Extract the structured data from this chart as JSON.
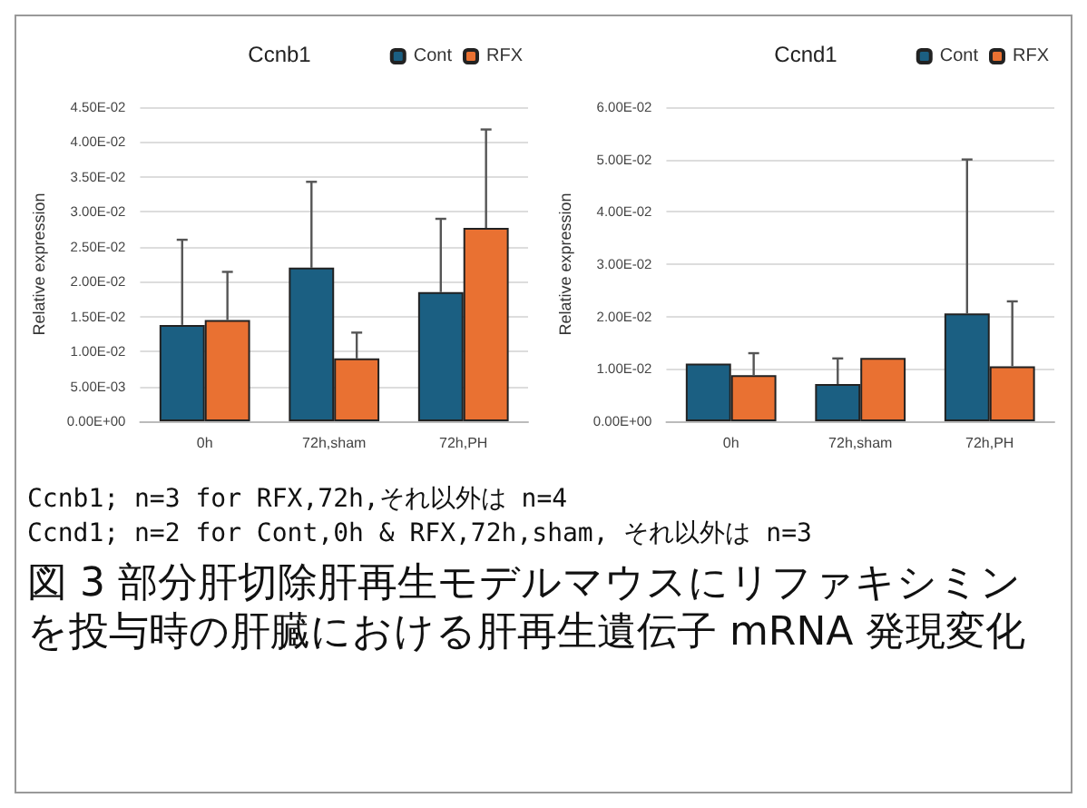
{
  "chart_data": [
    {
      "type": "bar",
      "title": "Ccnb1",
      "ylabel": "Relative expression",
      "categories": [
        "0h",
        "72h,sham",
        "72h,PH"
      ],
      "series": [
        {
          "name": "Cont",
          "color": "#1b5f82",
          "values": [
            0.0138,
            0.022,
            0.0185
          ],
          "errors": [
            [
              0.0138,
              0.026
            ],
            [
              0.022,
              0.0343
            ],
            [
              0.0185,
              0.029
            ]
          ]
        },
        {
          "name": "RFX",
          "color": "#e97132",
          "values": [
            0.0145,
            0.009,
            0.0277
          ],
          "errors": [
            [
              0.0145,
              0.0214
            ],
            [
              0.009,
              0.0127
            ],
            [
              0.0277,
              0.0418
            ]
          ]
        }
      ],
      "ylim": [
        0,
        0.045
      ],
      "yticks": [
        {
          "value": 0,
          "label": "0.00E+00"
        },
        {
          "value": 0.005,
          "label": "5.00E-03"
        },
        {
          "value": 0.01,
          "label": "1.00E-02"
        },
        {
          "value": 0.015,
          "label": "1.50E-02"
        },
        {
          "value": 0.02,
          "label": "2.00E-02"
        },
        {
          "value": 0.025,
          "label": "2.50E-02"
        },
        {
          "value": 0.03,
          "label": "3.00E-02"
        },
        {
          "value": 0.035,
          "label": "3.50E-02"
        },
        {
          "value": 0.04,
          "label": "4.00E-02"
        },
        {
          "value": 0.045,
          "label": "4.50E-02"
        }
      ],
      "grid": "y",
      "legend": "top right"
    },
    {
      "type": "bar",
      "title": "Ccnd1",
      "ylabel": "Relative expression",
      "categories": [
        "0h",
        "72h,sham",
        "72h,PH"
      ],
      "series": [
        {
          "name": "Cont",
          "color": "#1b5f82",
          "values": [
            0.011,
            0.0071,
            0.0206
          ],
          "errors": [
            null,
            [
              0.0071,
              0.012
            ],
            [
              0.0206,
              0.05
            ]
          ]
        },
        {
          "name": "RFX",
          "color": "#e97132",
          "values": [
            0.0088,
            0.0121,
            0.0105
          ],
          "errors": [
            [
              0.0088,
              0.013
            ],
            null,
            [
              0.0105,
              0.0229
            ]
          ]
        }
      ],
      "ylim": [
        0,
        0.06
      ],
      "yticks": [
        {
          "value": 0,
          "label": "0.00E+00"
        },
        {
          "value": 0.01,
          "label": "1.00E-02"
        },
        {
          "value": 0.02,
          "label": "2.00E-02"
        },
        {
          "value": 0.03,
          "label": "3.00E-02"
        },
        {
          "value": 0.04,
          "label": "4.00E-02"
        },
        {
          "value": 0.05,
          "label": "5.00E-02"
        },
        {
          "value": 0.06,
          "label": "6.00E-02"
        }
      ],
      "grid": "y",
      "legend": "top right"
    },
    {
      "type": "other",
      "annotations": [
        "Ccnb1; n=3 for RFX,72h,それ以外は n=4",
        "Ccnd1; n=2 for Cont,0h & RFX,72h,sham, それ以外は n=3",
        "図 3 部分肝切除肝再生モデルマウスにリファキシミンを投与時の肝臓における肝再生遺伝子 mRNA 発現変化"
      ]
    }
  ]
}
